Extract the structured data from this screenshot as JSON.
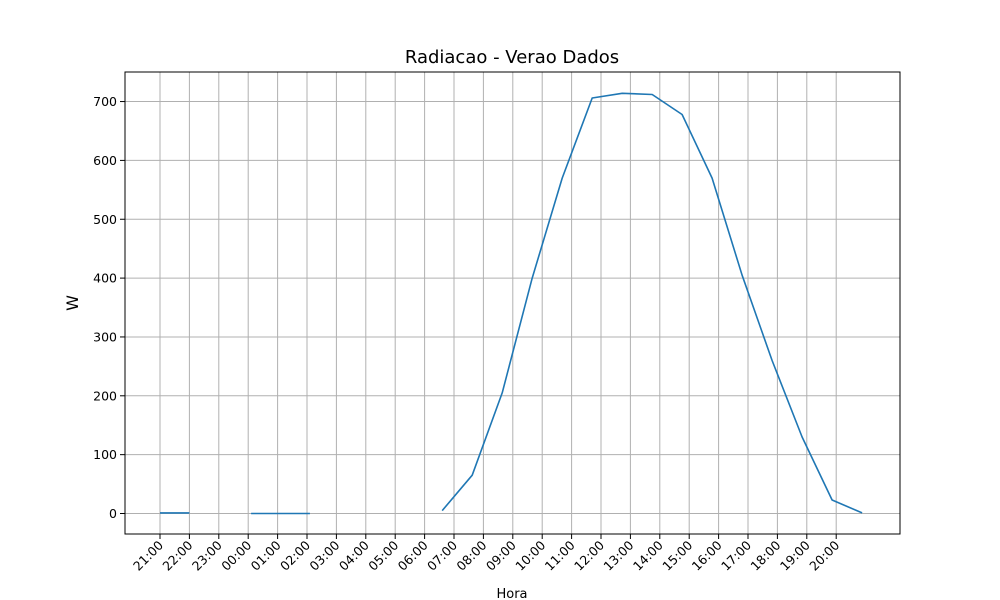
{
  "chart_data": {
    "type": "line",
    "title": "Radiacao - Verao Dados",
    "xlabel": "Hora",
    "ylabel": "W",
    "x_ticks": [
      "21:00",
      "22:00",
      "23:00",
      "00:00",
      "01:00",
      "02:00",
      "03:00",
      "04:00",
      "05:00",
      "06:00",
      "07:00",
      "08:00",
      "09:00",
      "10:00",
      "11:00",
      "12:00",
      "13:00",
      "14:00",
      "15:00",
      "16:00",
      "17:00",
      "18:00",
      "19:00",
      "20:00"
    ],
    "y_ticks": [
      0,
      100,
      200,
      300,
      400,
      500,
      600,
      700
    ],
    "ylim": [
      -35,
      750
    ],
    "grid": true,
    "series": [
      {
        "color": "#1f77b4",
        "points": [
          {
            "x": "21:00",
            "y": 1
          },
          {
            "x": "22:00",
            "y": 1
          },
          {
            "x": "23:00",
            "y": null
          },
          {
            "x": "00:00",
            "y": 0
          },
          {
            "x": "01:00",
            "y": 0
          },
          {
            "x": "02:00",
            "y": 0
          },
          {
            "x": "03:00",
            "y": null
          },
          {
            "x": "04:00",
            "y": null
          },
          {
            "x": "05:00",
            "y": null
          },
          {
            "x": "06:00",
            "y": 5
          },
          {
            "x": "07:00",
            "y": 65
          },
          {
            "x": "08:00",
            "y": 205
          },
          {
            "x": "09:00",
            "y": 400
          },
          {
            "x": "10:00",
            "y": 570
          },
          {
            "x": "11:00",
            "y": 706
          },
          {
            "x": "12:00",
            "y": 714
          },
          {
            "x": "13:00",
            "y": 712
          },
          {
            "x": "14:00",
            "y": 678
          },
          {
            "x": "15:00",
            "y": 570
          },
          {
            "x": "16:00",
            "y": 405
          },
          {
            "x": "17:00",
            "y": 260
          },
          {
            "x": "18:00",
            "y": 130
          },
          {
            "x": "19:00",
            "y": 23
          },
          {
            "x": "20:00",
            "y": 1
          }
        ]
      }
    ]
  }
}
